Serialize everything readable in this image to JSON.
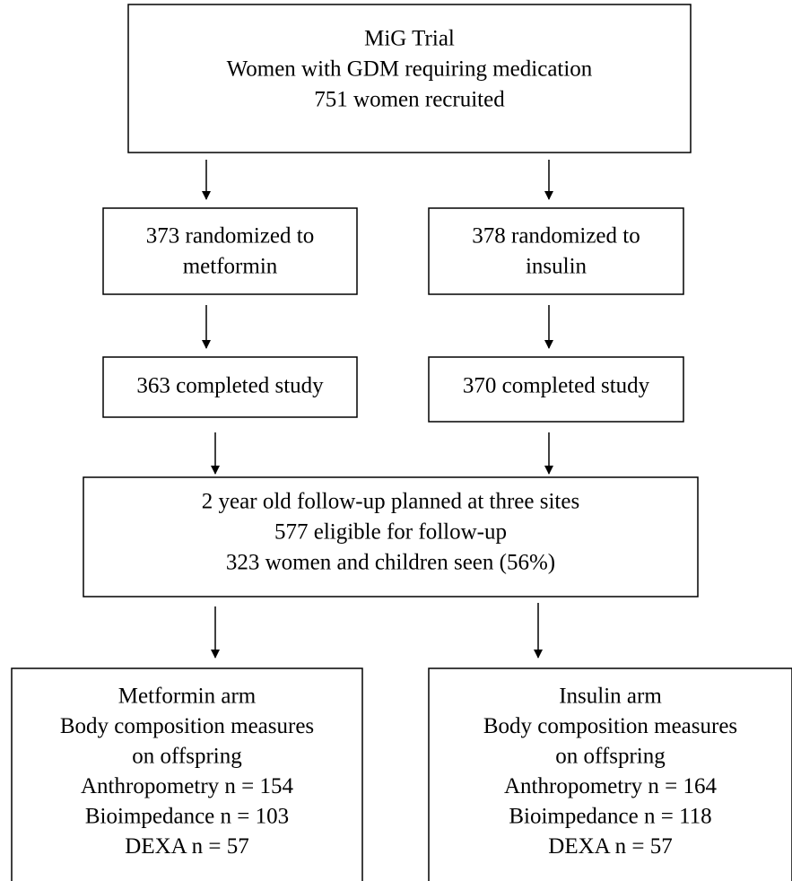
{
  "nodes": [
    {
      "lines": [
        "MiG Trial",
        "Women with GDM requiring medication",
        "751 women recruited"
      ]
    },
    {
      "lines": [
        "373 randomized to",
        "metformin"
      ]
    },
    {
      "lines": [
        "378 randomized to",
        "insulin"
      ]
    },
    {
      "lines": [
        "363 completed study"
      ]
    },
    {
      "lines": [
        "370 completed study"
      ]
    },
    {
      "lines": [
        "2 year old follow-up planned at three sites",
        "577 eligible for follow-up",
        "323 women and children seen (56%)"
      ]
    },
    {
      "lines": [
        "Metformin arm",
        "Body composition measures",
        "on offspring",
        "Anthropometry n = 154",
        "Bioimpedance n = 103",
        "DEXA n = 57"
      ]
    },
    {
      "lines": [
        "Insulin arm",
        "Body composition measures",
        "on offspring",
        "Anthropometry n = 164",
        "Bioimpedance n = 118",
        "DEXA n = 57"
      ]
    }
  ]
}
